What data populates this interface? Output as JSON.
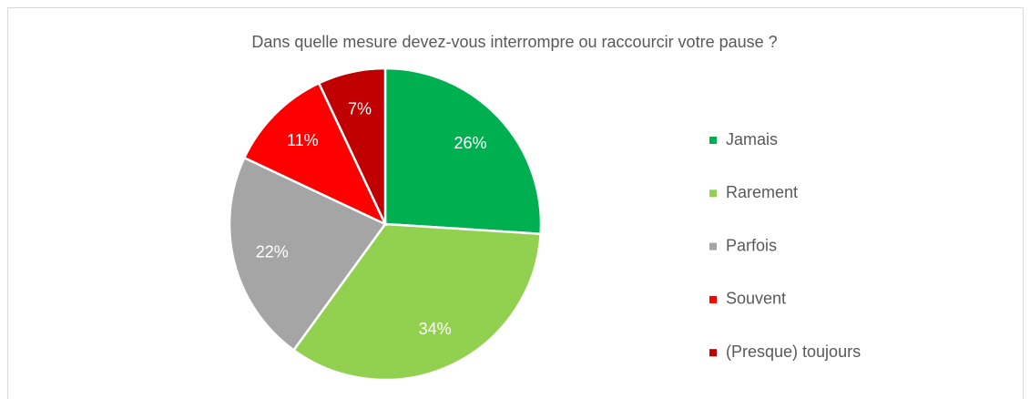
{
  "chart_data": {
    "type": "pie",
    "title": "Dans quelle mesure devez-vous interrompre ou raccourcir votre pause ?",
    "categories": [
      "Jamais",
      "Rarement",
      "Parfois",
      "Souvent",
      "(Presque) toujours"
    ],
    "values": [
      26,
      34,
      22,
      11,
      7
    ],
    "value_labels": [
      "26%",
      "34%",
      "22%",
      "11%",
      "7%"
    ],
    "colors": [
      "#00b050",
      "#92d050",
      "#a5a5a5",
      "#ff0000",
      "#c00000"
    ],
    "legend": "right"
  }
}
